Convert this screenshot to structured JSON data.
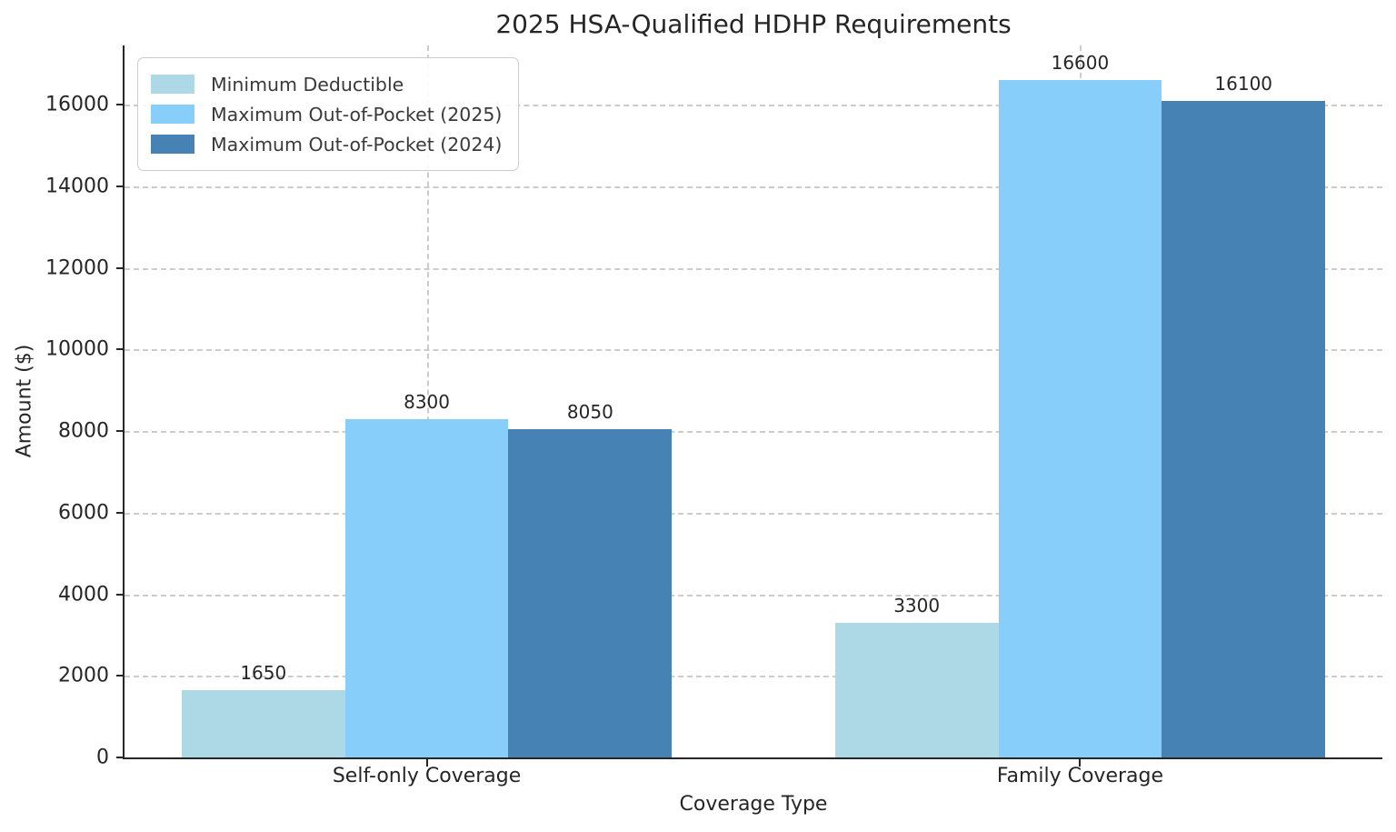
{
  "chart_data": {
    "type": "bar",
    "title": "2025 HSA-Qualified HDHP Requirements",
    "xlabel": "Coverage Type",
    "ylabel": "Amount ($)",
    "categories": [
      "Self-only Coverage",
      "Family Coverage"
    ],
    "series": [
      {
        "name": "Minimum Deductible",
        "color": "#ADD8E6",
        "values": [
          1650,
          3300
        ]
      },
      {
        "name": "Maximum Out-of-Pocket (2025)",
        "color": "#87CEFA",
        "values": [
          8300,
          16600
        ]
      },
      {
        "name": "Maximum Out-of-Pocket (2024)",
        "color": "#4682B4",
        "values": [
          8050,
          16100
        ]
      }
    ],
    "yticks": [
      0,
      2000,
      4000,
      6000,
      8000,
      10000,
      12000,
      14000,
      16000
    ],
    "ylim": [
      0,
      17450
    ],
    "grid": {
      "horizontal": true,
      "vertical": true,
      "style": "dashed",
      "color": "#cccccc"
    },
    "legend_position": "upper left",
    "bar_labels": true
  },
  "colors": {
    "text": "#262626",
    "axis": "#262626",
    "grid": "#cccccc",
    "background": "#ffffff"
  }
}
